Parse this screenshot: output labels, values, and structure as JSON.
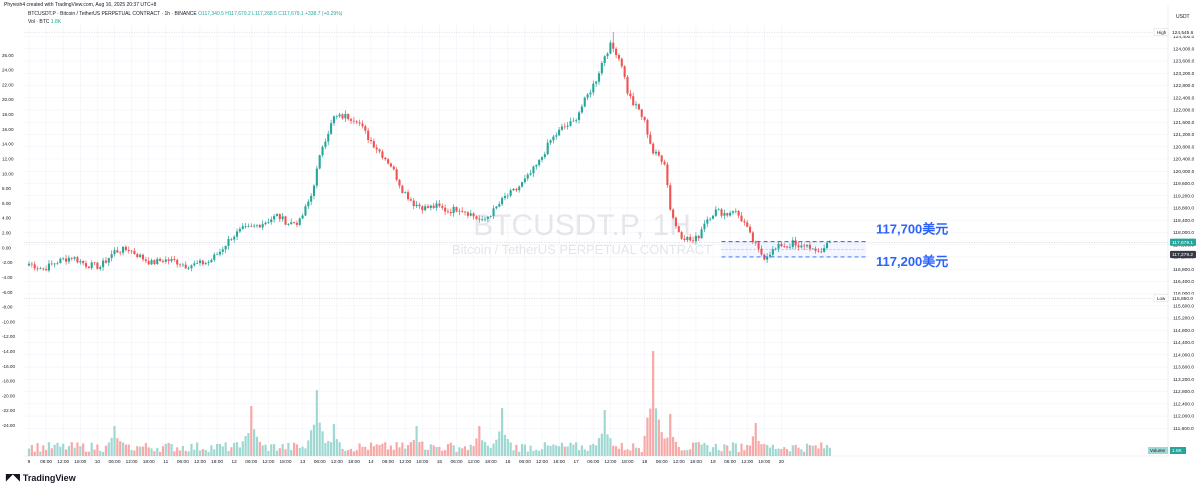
{
  "watermark": {
    "credit": "Phyresh4 created with TradingView.com, Aug 16, 2025 20:37 UTC+8",
    "logo_text": "TradingView",
    "big_symbol": "BTCUSDT.P, 1H",
    "symbol_desc": "Bitcoin / TetherUS PERPETUAL CONTRACT"
  },
  "header": {
    "title": "BTCUSDT.P · Bitcoin / TetherUS PERPETUAL CONTRACT · 1h · BINANCE",
    "ohlc": "O117,340.5  H117,679.2  L117,268.5  C117,679.1  +338.7 (+0.29%)",
    "vol_label": "Vol · BTC",
    "vol_value": "1.8K",
    "vol_sub": "Vol 1.8K  +398.9 (+0.34%)"
  },
  "currency": "USDT",
  "colors": {
    "up": "#26a69a",
    "down": "#ef5350",
    "up_vol": "#9fd8d2",
    "down_vol": "#f7a9a7",
    "annotation": "#2962ff",
    "price_tag": "#26a69a",
    "dark_tag": "#363a45"
  },
  "chart_data": {
    "type": "candlestick",
    "price_axis": {
      "min": 111200,
      "max": 124600,
      "ticks": [
        111600,
        112000,
        112400,
        112800,
        113200,
        113600,
        114000,
        114400,
        114800,
        115200,
        115600,
        116000,
        116400,
        116800,
        117200,
        117600,
        118000,
        118400,
        118800,
        119200,
        119600,
        120000,
        120400,
        120800,
        121200,
        121600,
        122000,
        122400,
        122800,
        123200,
        123600,
        124000,
        124400
      ],
      "tick_labels": [
        "111,600.0",
        "112,000.0",
        "112,400.0",
        "112,800.0",
        "113,200.0",
        "113,600.0",
        "114,000.0",
        "114,400.0",
        "114,800.0",
        "115,200.0",
        "115,600.0",
        "116,000.0",
        "116,400.0",
        "116,800.0",
        "117,200.0",
        "117,600.0",
        "118,000.0",
        "118,400.0",
        "118,800.0",
        "119,200.0",
        "119,600.0",
        "120,000.0",
        "120,400.0",
        "120,800.0",
        "121,200.0",
        "121,600.0",
        "122,000.0",
        "122,400.0",
        "122,800.0",
        "123,200.0",
        "123,600.0",
        "124,000.0",
        "124,400.0"
      ]
    },
    "pct_axis": {
      "labels": [
        "26.00",
        "24.00",
        "22.00",
        "20.00",
        "18.00",
        "16.00",
        "14.00",
        "12.00",
        "10.00",
        "8.00",
        "6.00",
        "4.00",
        "2.00",
        "0.00",
        "-2.00",
        "-4.00",
        "-6.00",
        "-8.00",
        "-10.00",
        "-12.00",
        "-14.00",
        "-16.00",
        "-18.00",
        "-20.00",
        "-22.00",
        "-24.00"
      ],
      "values": [
        26,
        24,
        22,
        20,
        18,
        16,
        14,
        12,
        10,
        8,
        6,
        4,
        2,
        0,
        -2,
        -4,
        -6,
        -8,
        -10,
        -12,
        -14,
        -16,
        -18,
        -20,
        -22,
        -24
      ],
      "zero_price": 117500,
      "price_per_pct": 242
    },
    "time_axis": {
      "labels": [
        "9",
        "06:00",
        "12:00",
        "18:00",
        "10",
        "06:00",
        "12:00",
        "18:00",
        "11",
        "06:00",
        "12:00",
        "18:00",
        "12",
        "06:00",
        "12:00",
        "18:00",
        "13",
        "06:00",
        "12:00",
        "18:00",
        "14",
        "06:00",
        "12:00",
        "18:00",
        "15",
        "06:00",
        "12:00",
        "18:00",
        "16",
        "06:00",
        "12:00",
        "18:00",
        "17",
        "06:00",
        "12:00",
        "18:00",
        "18",
        "06:00",
        "12:00",
        "18:00",
        "19",
        "06:00",
        "12:00",
        "18:00",
        "20"
      ],
      "bar_index": [
        0,
        6,
        12,
        18,
        24,
        30,
        36,
        42,
        48,
        54,
        60,
        66,
        72,
        78,
        84,
        90,
        96,
        102,
        108,
        114,
        120,
        126,
        132,
        138,
        144,
        150,
        156,
        162,
        168,
        174,
        180,
        186,
        192,
        198,
        204,
        210,
        216,
        222,
        228,
        234,
        240,
        246,
        252,
        258,
        264
      ]
    },
    "ohlc_anchors": [
      [
        0,
        116980
      ],
      [
        5,
        116800
      ],
      [
        10,
        117050
      ],
      [
        15,
        117200
      ],
      [
        20,
        116950
      ],
      [
        25,
        116880
      ],
      [
        30,
        117380
      ],
      [
        35,
        117450
      ],
      [
        40,
        117150
      ],
      [
        43,
        117000
      ],
      [
        47,
        117100
      ],
      [
        51,
        117070
      ],
      [
        55,
        116920
      ],
      [
        58,
        116950
      ],
      [
        63,
        117030
      ],
      [
        67,
        117380
      ],
      [
        71,
        117850
      ],
      [
        75,
        118100
      ],
      [
        78,
        118150
      ],
      [
        83,
        118350
      ],
      [
        87,
        118550
      ],
      [
        91,
        118300
      ],
      [
        95,
        118350
      ],
      [
        99,
        119200
      ],
      [
        103,
        120850
      ],
      [
        107,
        121750
      ],
      [
        111,
        121800
      ],
      [
        115,
        121700
      ],
      [
        119,
        121100
      ],
      [
        123,
        120650
      ],
      [
        127,
        120200
      ],
      [
        131,
        119400
      ],
      [
        135,
        118950
      ],
      [
        139,
        118800
      ],
      [
        143,
        118850
      ],
      [
        147,
        118700
      ],
      [
        151,
        118800
      ],
      [
        155,
        118600
      ],
      [
        159,
        118350
      ],
      [
        163,
        118700
      ],
      [
        167,
        119150
      ],
      [
        171,
        119400
      ],
      [
        175,
        119800
      ],
      [
        179,
        120300
      ],
      [
        183,
        121000
      ],
      [
        187,
        121400
      ],
      [
        191,
        121600
      ],
      [
        195,
        122300
      ],
      [
        199,
        123000
      ],
      [
        202,
        123800
      ],
      [
        204,
        124100
      ],
      [
        206,
        123900
      ],
      [
        208,
        123500
      ],
      [
        210,
        122600
      ],
      [
        212,
        122200
      ],
      [
        214,
        122000
      ],
      [
        216,
        121600
      ],
      [
        219,
        120600
      ],
      [
        221,
        120500
      ],
      [
        223,
        120300
      ],
      [
        225,
        118800
      ],
      [
        227,
        118200
      ],
      [
        229,
        117900
      ],
      [
        231,
        117800
      ],
      [
        233,
        117700
      ],
      [
        235,
        117900
      ],
      [
        237,
        118350
      ],
      [
        239,
        118550
      ],
      [
        241,
        118700
      ],
      [
        243,
        118650
      ],
      [
        245,
        118600
      ],
      [
        247,
        118750
      ],
      [
        249,
        118550
      ],
      [
        251,
        118300
      ],
      [
        253,
        117900
      ],
      [
        256,
        117400
      ],
      [
        258,
        117200
      ],
      [
        260,
        117350
      ],
      [
        262,
        117450
      ],
      [
        264,
        117600
      ],
      [
        266,
        117550
      ],
      [
        268,
        117650
      ],
      [
        270,
        117450
      ],
      [
        272,
        117600
      ],
      [
        274,
        117550
      ],
      [
        276,
        117300
      ],
      [
        278,
        117400
      ],
      [
        280,
        117650
      ],
      [
        281,
        117679
      ]
    ],
    "n_bars": 282,
    "volume_spikes": [
      [
        30,
        30
      ],
      [
        78,
        50
      ],
      [
        101,
        66
      ],
      [
        107,
        32
      ],
      [
        136,
        30
      ],
      [
        158,
        30
      ],
      [
        166,
        48
      ],
      [
        202,
        46
      ],
      [
        219,
        105
      ],
      [
        225,
        42
      ],
      [
        255,
        33
      ]
    ],
    "last_price": 117679.1,
    "last_price_label": "117,679.1",
    "second_price_label": "117,279.2",
    "high_label": "124,545.6",
    "high_value": 124545.6,
    "low_label": "115,850.0",
    "low_value": 115850,
    "high_tag": "High",
    "low_tag": "Low",
    "volume_tag": "Volume",
    "volume_value": "1.8K",
    "annotations": [
      {
        "label": "117,700美元",
        "price": 117700
      },
      {
        "label": "117,200美元",
        "price": 117200
      }
    ]
  }
}
